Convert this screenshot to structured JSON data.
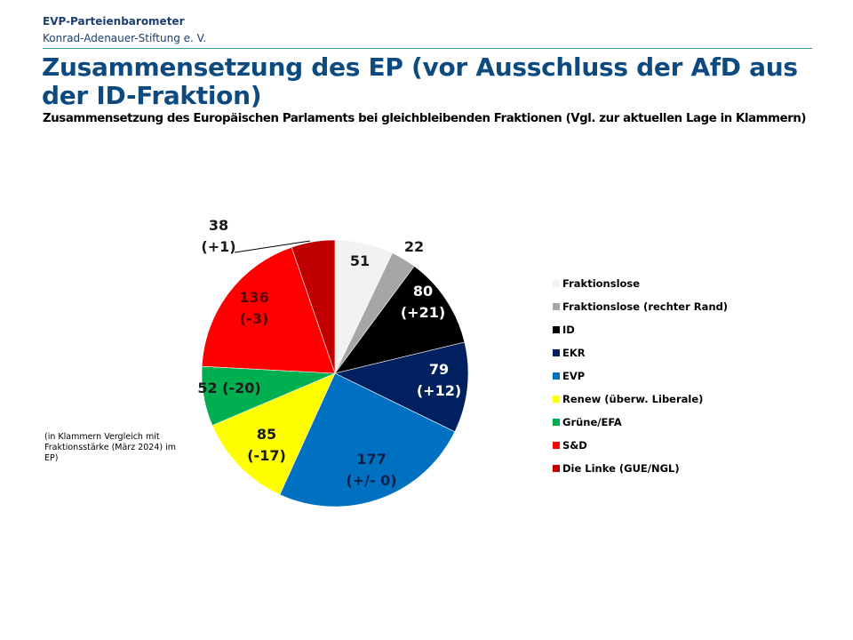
{
  "header": {
    "org_title": "EVP-Parteienbarometer",
    "org_name": "Konrad-Adenauer-Stiftung e. V."
  },
  "note": "(in Klammern Vergleich mit Fraktionsstärke (März 2024) im EP)",
  "chart_data": {
    "type": "pie",
    "title": "Zusammensetzung des EP (vor Ausschluss der AfD aus der ID-Fraktion)",
    "subtitle": "Zusammensetzung des Europäischen Parlaments bei gleichbleibenden Fraktionen (Vgl. zur aktuellen Lage in Klammern)",
    "legend_position": "right",
    "start": "top, clockwise",
    "slices": [
      {
        "name": "Fraktionslose",
        "value": 51,
        "delta": "",
        "color": "#f2f2f2",
        "label_color": "#1a1a1a"
      },
      {
        "name": "Fraktionslose (rechter Rand)",
        "value": 22,
        "delta": "",
        "color": "#a6a6a6",
        "label_color": "#1a1a1a"
      },
      {
        "name": "ID",
        "value": 80,
        "delta": "(+21)",
        "color": "#000000",
        "label_color": "#ffffff"
      },
      {
        "name": "EKR",
        "value": 79,
        "delta": "(+12)",
        "color": "#002060",
        "label_color": "#ffffff"
      },
      {
        "name": "EVP",
        "value": 177,
        "delta": "(+/- 0)",
        "color": "#0070c0",
        "label_color": "#0b1f4a"
      },
      {
        "name": "Renew (überw. Liberale)",
        "value": 85,
        "delta": "(-17)",
        "color": "#ffff00",
        "label_color": "#1a1a1a"
      },
      {
        "name": "Grüne/EFA",
        "value": 52,
        "delta": "(-20)",
        "color": "#00b050",
        "label_color": "#1a1a1a"
      },
      {
        "name": "S&D",
        "value": 136,
        "delta": "(-3)",
        "color": "#ff0000",
        "label_color": "#5a0000"
      },
      {
        "name": "Die Linke (GUE/NGL)",
        "value": 38,
        "delta": "(+1)",
        "color": "#c00000",
        "label_color": "#1a1a1a"
      }
    ]
  }
}
